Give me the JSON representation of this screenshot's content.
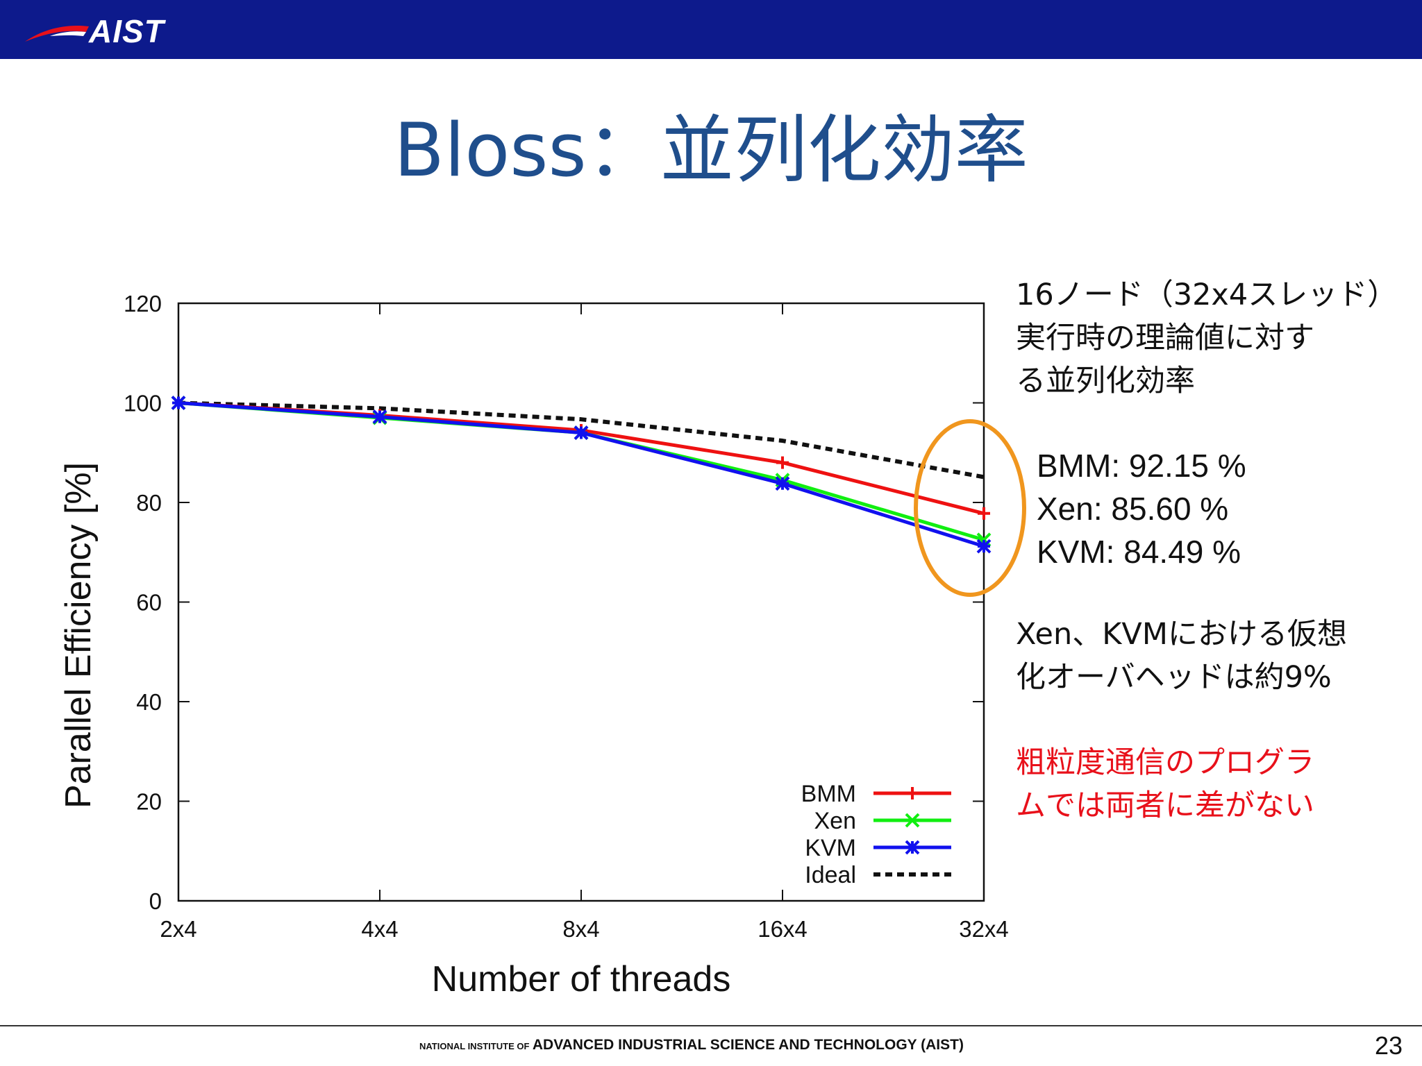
{
  "header": {
    "logo_text": "AIST"
  },
  "slide": {
    "title": "Bloss：並列化効率",
    "note1": "16ノード（32x4スレッド）\n実行時の理論値に対す\nる並列化効率",
    "results": [
      "BMM: 92.15 %",
      "Xen: 85.60 %",
      "KVM: 84.49 %"
    ],
    "note2": "Xen、KVMにおける仮想\n化オーバヘッドは約9%",
    "note3": "粗粒度通信のプログラ\nムでは両者に差がない",
    "note3_color": "#e8101a",
    "highlight_color": "#f0961e"
  },
  "footer": {
    "small_text": "NATIONAL INSTITUTE OF",
    "big_text": "ADVANCED INDUSTRIAL SCIENCE AND TECHNOLOGY (AIST)",
    "page_number": "23"
  },
  "chart_data": {
    "type": "line",
    "title": "",
    "xlabel": "Number of threads",
    "ylabel": "Parallel Efficiency [%]",
    "categories": [
      "2x4",
      "4x4",
      "8x4",
      "16x4",
      "32x4"
    ],
    "ylim": [
      0,
      120
    ],
    "yticks": [
      0,
      20,
      40,
      60,
      80,
      100,
      120
    ],
    "legend_position": "bottom-right",
    "series": [
      {
        "name": "BMM",
        "values": [
          100,
          97.5,
          94.5,
          88,
          77.8
        ],
        "color": "#ee1111",
        "marker": "plus",
        "dash": false
      },
      {
        "name": "Xen",
        "values": [
          100,
          97,
          94,
          84.5,
          72.5
        ],
        "color": "#11ee11",
        "marker": "cross",
        "dash": false
      },
      {
        "name": "KVM",
        "values": [
          100,
          97.2,
          94,
          83.8,
          71.2
        ],
        "color": "#1111ee",
        "marker": "star",
        "dash": false
      },
      {
        "name": "Ideal",
        "values": [
          100,
          98.9,
          96.7,
          92.4,
          85.1
        ],
        "color": "#111111",
        "marker": "none",
        "dash": true
      }
    ]
  }
}
